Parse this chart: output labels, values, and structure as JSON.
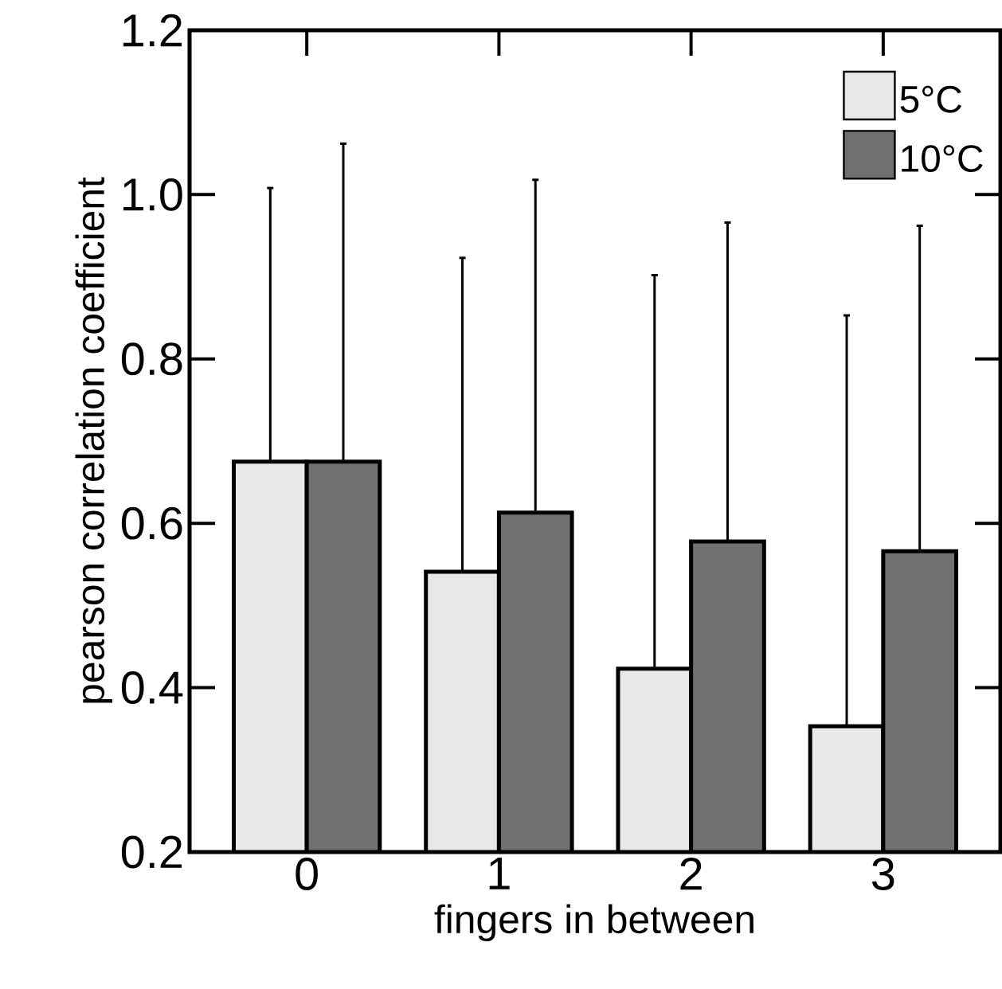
{
  "chart_data": {
    "type": "bar",
    "xlabel": "fingers in between",
    "ylabel": "pearson correlation coefficient",
    "categories": [
      "0",
      "1",
      "2",
      "3"
    ],
    "series": [
      {
        "name": "5°C",
        "color": "#e8e8e8",
        "values": [
          0.675,
          0.541,
          0.423,
          0.353
        ],
        "errors": [
          [
            0.675,
            1.008
          ],
          [
            0.541,
            0.923
          ],
          [
            0.423,
            0.902
          ],
          [
            0.353,
            0.853
          ]
        ]
      },
      {
        "name": "10°C",
        "color": "#707070",
        "values": [
          0.675,
          0.613,
          0.578,
          0.566
        ],
        "errors": [
          [
            0.675,
            1.062
          ],
          [
            0.613,
            1.018
          ],
          [
            0.578,
            0.966
          ],
          [
            0.566,
            0.962
          ]
        ]
      }
    ],
    "ylim": [
      0.2,
      1.2
    ],
    "yticks": [
      {
        "value": 0.2,
        "label": "0.2"
      },
      {
        "value": 0.4,
        "label": "0.4"
      },
      {
        "value": 0.6,
        "label": "0.6"
      },
      {
        "value": 0.8,
        "label": "0.8"
      },
      {
        "value": 1.0,
        "label": "1.0"
      },
      {
        "value": 1.2,
        "label": "1.2"
      }
    ],
    "grid": false,
    "legend": "top right"
  }
}
